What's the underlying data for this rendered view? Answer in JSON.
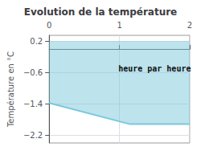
{
  "chart_data": {
    "type": "line",
    "title": "Evolution de la température",
    "ylabel": "Température en °C",
    "x": [
      0,
      1.15,
      2
    ],
    "series": [
      {
        "values": [
          -1.38,
          -1.92,
          -1.92
        ],
        "color": "#7bc8dc",
        "fill_top": 0.2
      }
    ],
    "xlim": [
      0,
      2
    ],
    "xticks": [
      0,
      1,
      2
    ],
    "ylim": [
      -2.4,
      0.35
    ],
    "yticks": [
      0.2,
      {
        "value": -0.6,
        "label": "−0.6"
      },
      {
        "value": -1.4,
        "label": "−1.4"
      },
      {
        "value": -2.2,
        "label": "−2.2"
      }
    ],
    "grid": true,
    "annotations": [
      {
        "text": "heure par heure",
        "x": 1.5,
        "y": -0.5
      }
    ]
  }
}
